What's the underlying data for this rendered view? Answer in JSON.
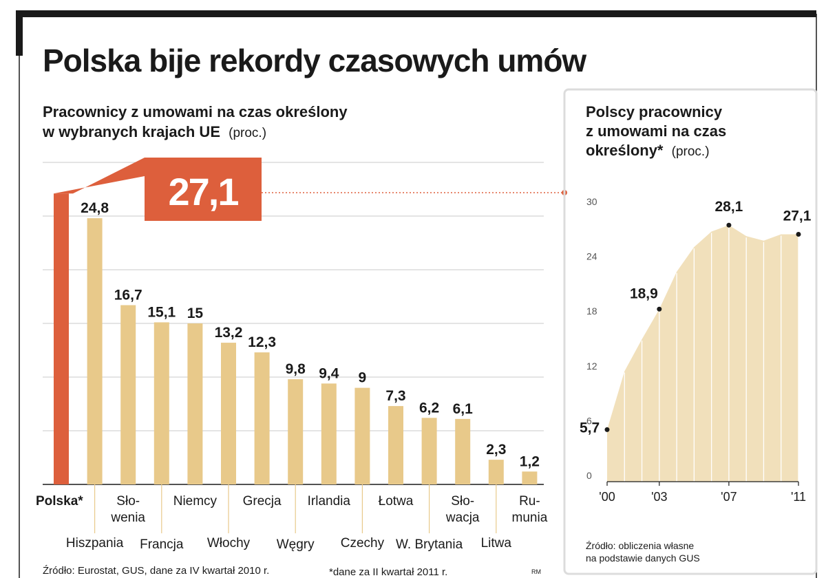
{
  "title": "Polska bije rekordy czasowych umów",
  "colors": {
    "frame": "#1a1a1a",
    "accent": "#dd5f3c",
    "bar": "#e8c98a",
    "area": "#f1e0bb",
    "area_stripe": "#ffffff",
    "grid": "#c9c9c9",
    "panel_border": "#dcdcdc",
    "axis": "#1a1a1a",
    "text": "#1a1a1a",
    "muted": "#555555"
  },
  "left_chart": {
    "title_line1": "Pracownicy z umowami na czas określony",
    "title_line2": "w wybranych krajach UE",
    "unit": "(proc.)",
    "highlight_label": "27,1",
    "source": "Źródło: Eurostat, GUS, dane za IV kwartał 2010 r.",
    "footnote": "*dane za II kwartał 2011 r.",
    "credit": "RM"
  },
  "right_chart": {
    "title_line1": "Polscy pracownicy",
    "title_line2": "z umowami na czas",
    "title_line3": "określony*",
    "unit": "(proc.)",
    "source_line1": "Źródło: obliczenia własne",
    "source_line2": "na podstawie danych GUS"
  },
  "chart_data": [
    {
      "type": "bar",
      "title": "Pracownicy z umowami na czas określony w wybranych krajach UE (proc.)",
      "ylim": [
        0,
        30
      ],
      "grid": true,
      "categories": [
        "Polska*",
        "Hiszpania",
        "Słowenia",
        "Francja",
        "Niemcy",
        "Włochy",
        "Grecja",
        "Węgry",
        "Irlandia",
        "Czechy",
        "Łotwa",
        "W. Brytania",
        "Słowacja",
        "Litwa",
        "Rumunia"
      ],
      "category_labels": [
        "Polska*",
        "Hiszpania",
        "Sło-\nwenia",
        "Francja",
        "Niemcy",
        "Włochy",
        "Grecja",
        "Węgry",
        "Irlandia",
        "Czechy",
        "Łotwa",
        "W. Brytania",
        "Sło-\nwacja",
        "Litwa",
        "Ru-\nmunia"
      ],
      "values": [
        27.1,
        24.8,
        16.7,
        15.1,
        15,
        13.2,
        12.3,
        9.8,
        9.4,
        9,
        7.3,
        6.2,
        6.1,
        2.3,
        1.2
      ],
      "value_labels": [
        "27,1",
        "24,8",
        "16,7",
        "15,1",
        "15",
        "13,2",
        "12,3",
        "9,8",
        "9,4",
        "9",
        "7,3",
        "6,2",
        "6,1",
        "2,3",
        "1,2"
      ],
      "highlight_index": 0
    },
    {
      "type": "area",
      "title": "Polscy pracownicy z umowami na czas określony* (proc.)",
      "ylim": [
        0,
        30
      ],
      "yticks": [
        0,
        6,
        12,
        18,
        24,
        30
      ],
      "xtick_labels": [
        "'00",
        "'03",
        "'07",
        "'11"
      ],
      "x": [
        2000,
        2001,
        2002,
        2003,
        2004,
        2005,
        2006,
        2007,
        2008,
        2009,
        2010,
        2011
      ],
      "values": [
        5.7,
        12.1,
        15.6,
        18.9,
        23.0,
        25.7,
        27.4,
        28.1,
        26.9,
        26.4,
        27.1,
        27.1
      ],
      "annotations": [
        {
          "x": 2000,
          "label": "5,7"
        },
        {
          "x": 2003,
          "label": "18,9"
        },
        {
          "x": 2007,
          "label": "28,1"
        },
        {
          "x": 2011,
          "label": "27,1"
        }
      ]
    }
  ]
}
